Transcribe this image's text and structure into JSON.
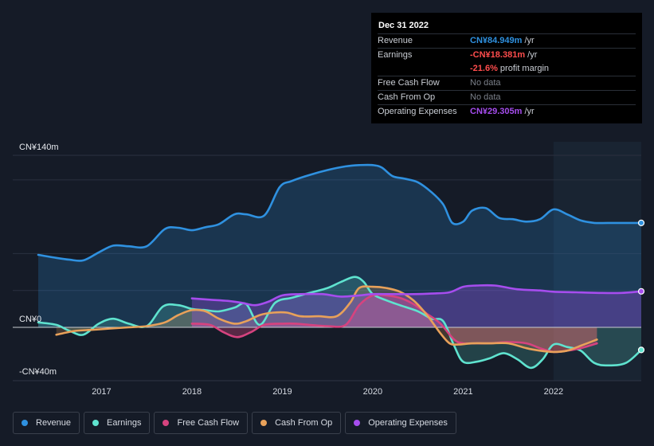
{
  "colors": {
    "revenue": "#2f91e0",
    "earnings": "#5fe3cf",
    "free_cash_flow": "#d6437f",
    "cash_from_op": "#e8a15a",
    "operating_expenses": "#a64dee",
    "negative_value": "#ff4d4d",
    "background": "#151b27"
  },
  "tooltip": {
    "date": "Dec 31 2022",
    "rows": [
      {
        "label": "Revenue",
        "value": "CN¥84.949m",
        "unit": " /yr"
      },
      {
        "label": "Earnings",
        "value": "-CN¥18.381m",
        "unit": " /yr"
      },
      {
        "label": "",
        "value": "-21.6%",
        "unit": " profit margin"
      },
      {
        "label": "Free Cash Flow",
        "value": "No data",
        "unit": ""
      },
      {
        "label": "Cash From Op",
        "value": "No data",
        "unit": ""
      },
      {
        "label": "Operating Expenses",
        "value": "CN¥29.305m",
        "unit": " /yr"
      }
    ]
  },
  "legend": [
    {
      "label": "Revenue",
      "color_key": "revenue"
    },
    {
      "label": "Earnings",
      "color_key": "earnings"
    },
    {
      "label": "Free Cash Flow",
      "color_key": "free_cash_flow"
    },
    {
      "label": "Cash From Op",
      "color_key": "cash_from_op"
    },
    {
      "label": "Operating Expenses",
      "color_key": "operating_expenses"
    }
  ],
  "chart_data": {
    "type": "area",
    "title": "",
    "xlabel": "",
    "ylabel": "",
    "y_tick_labels": [
      {
        "value": 140,
        "label": "CN¥140m"
      },
      {
        "value": 0,
        "label": "CN¥0"
      },
      {
        "value": -40,
        "label": "-CN¥40m"
      }
    ],
    "ylim": [
      -40,
      140
    ],
    "xlim": [
      2016.25,
      2022.97
    ],
    "x_ticks": [
      2017,
      2018,
      2019,
      2020,
      2021,
      2022
    ],
    "highlight_start": 2022.0,
    "series": [
      {
        "name": "Revenue",
        "color_key": "revenue",
        "fill": true,
        "end_marker": true,
        "x": [
          2016.3,
          2016.5,
          2016.65,
          2016.8,
          2016.97,
          2017.13,
          2017.3,
          2017.5,
          2017.7,
          2017.85,
          2018.0,
          2018.15,
          2018.3,
          2018.47,
          2018.6,
          2018.8,
          2018.97,
          2019.1,
          2019.3,
          2019.5,
          2019.7,
          2019.85,
          2020.0,
          2020.1,
          2020.22,
          2020.35,
          2020.5,
          2020.65,
          2020.78,
          2020.88,
          2021.0,
          2021.1,
          2021.25,
          2021.4,
          2021.55,
          2021.7,
          2021.85,
          2022.0,
          2022.15,
          2022.3,
          2022.45,
          2022.6,
          2022.8,
          2022.97
        ],
        "values": [
          59,
          56.5,
          55,
          54.5,
          61,
          66.5,
          66,
          66,
          80,
          81,
          79,
          81.5,
          84,
          92,
          92,
          91,
          114,
          119,
          124,
          128,
          131,
          132,
          132,
          130,
          123,
          121,
          118,
          110,
          100,
          85,
          86,
          95,
          97,
          89,
          88,
          86,
          88,
          96,
          92,
          87,
          85,
          85,
          85,
          85
        ]
      },
      {
        "name": "Earnings",
        "color_key": "earnings",
        "fill": true,
        "end_marker": true,
        "x": [
          2016.3,
          2016.5,
          2016.65,
          2016.8,
          2016.97,
          2017.13,
          2017.3,
          2017.5,
          2017.68,
          2017.85,
          2018.0,
          2018.15,
          2018.3,
          2018.47,
          2018.6,
          2018.75,
          2018.92,
          2019.1,
          2019.3,
          2019.5,
          2019.65,
          2019.8,
          2019.9,
          2020.0,
          2020.15,
          2020.3,
          2020.5,
          2020.65,
          2020.78,
          2020.9,
          2021.0,
          2021.15,
          2021.3,
          2021.45,
          2021.6,
          2021.75,
          2021.88,
          2022.0,
          2022.15,
          2022.3,
          2022.45,
          2022.6,
          2022.8,
          2022.97
        ],
        "values": [
          4,
          2,
          -3,
          -6,
          3,
          7,
          3,
          1,
          17,
          18,
          15,
          14,
          13,
          16,
          19,
          2,
          20,
          24,
          28,
          32,
          37,
          41,
          37,
          27,
          22,
          18,
          13,
          7,
          5,
          -15,
          -28,
          -28,
          -25,
          -21,
          -26,
          -33,
          -26,
          -14,
          -16,
          -19,
          -29,
          -31,
          -29,
          -18.4
        ]
      },
      {
        "name": "Free Cash Flow",
        "color_key": "free_cash_flow",
        "fill": true,
        "end_marker": false,
        "x": [
          2018.0,
          2018.2,
          2018.35,
          2018.5,
          2018.65,
          2018.8,
          2019.0,
          2019.15,
          2019.3,
          2019.5,
          2019.7,
          2019.85,
          2020.0,
          2020.15,
          2020.3,
          2020.45,
          2020.6,
          2020.75,
          2020.9,
          2021.0,
          2021.15,
          2021.3,
          2021.5,
          2021.7,
          2021.85,
          2022.0,
          2022.15,
          2022.3,
          2022.48
        ],
        "values": [
          3,
          2,
          -4,
          -8,
          -4,
          2,
          3,
          3,
          2,
          1,
          2,
          18,
          26,
          26,
          24,
          19,
          11,
          3,
          -10,
          -13,
          -13,
          -13,
          -12,
          -13,
          -17,
          -20,
          -19,
          -17,
          -13
        ]
      },
      {
        "name": "Cash From Op",
        "color_key": "cash_from_op",
        "fill": true,
        "end_marker": false,
        "x": [
          2016.5,
          2016.7,
          2016.9,
          2017.1,
          2017.3,
          2017.5,
          2017.7,
          2017.85,
          2018.0,
          2018.15,
          2018.3,
          2018.47,
          2018.6,
          2018.75,
          2018.9,
          2019.05,
          2019.2,
          2019.4,
          2019.6,
          2019.75,
          2019.85,
          2020.0,
          2020.15,
          2020.3,
          2020.45,
          2020.6,
          2020.75,
          2020.85,
          2020.95,
          2021.1,
          2021.3,
          2021.5,
          2021.7,
          2021.85,
          2022.0,
          2022.15,
          2022.3,
          2022.48
        ],
        "values": [
          -6,
          -3,
          -2,
          -1,
          0,
          1,
          4,
          10,
          14,
          13,
          7,
          3,
          5,
          10,
          12,
          12,
          9,
          9,
          9,
          20,
          32,
          33,
          32,
          29,
          22,
          10,
          -5,
          -13,
          -14,
          -13,
          -13,
          -13,
          -17,
          -19,
          -20,
          -19,
          -15,
          -10
        ]
      },
      {
        "name": "Operating Expenses",
        "color_key": "operating_expenses",
        "fill": true,
        "end_marker": true,
        "x": [
          2018.0,
          2018.2,
          2018.4,
          2018.55,
          2018.7,
          2018.85,
          2019.0,
          2019.2,
          2019.45,
          2019.65,
          2019.85,
          2020.0,
          2020.2,
          2020.45,
          2020.65,
          2020.85,
          2021.0,
          2021.15,
          2021.35,
          2021.6,
          2021.85,
          2022.0,
          2022.25,
          2022.5,
          2022.75,
          2022.97
        ],
        "values": [
          23.5,
          22.5,
          21.5,
          20,
          18,
          21,
          26,
          27,
          27,
          25,
          26,
          27,
          27,
          27,
          27.5,
          28.5,
          33,
          34,
          34,
          31,
          30,
          29,
          28.5,
          28,
          28,
          29.3
        ]
      }
    ]
  }
}
